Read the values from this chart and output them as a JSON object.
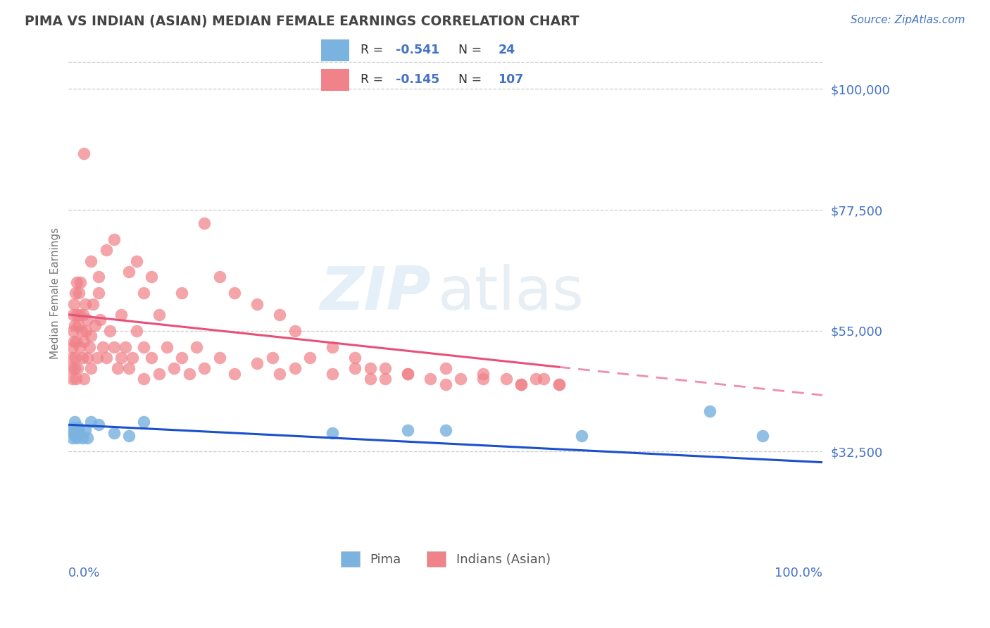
{
  "title": "PIMA VS INDIAN (ASIAN) MEDIAN FEMALE EARNINGS CORRELATION CHART",
  "source": "Source: ZipAtlas.com",
  "ylabel": "Median Female Earnings",
  "yticks": [
    32500,
    55000,
    77500,
    100000
  ],
  "ytick_labels": [
    "$32,500",
    "$55,000",
    "$77,500",
    "$100,000"
  ],
  "xmin": 0.0,
  "xmax": 100.0,
  "ymin": 17000,
  "ymax": 107000,
  "pima_color": "#7ab3e0",
  "indian_color": "#f0828a",
  "pima_R": -0.541,
  "pima_N": 24,
  "indian_R": -0.145,
  "indian_N": 107,
  "legend_label_pima": "Pima",
  "legend_label_indian": "Indians (Asian)",
  "watermark_zip": "ZIP",
  "watermark_atlas": "atlas",
  "blue_text_color": "#4472c4",
  "title_color": "#444444",
  "source_color": "#4472c4",
  "background_color": "#ffffff",
  "grid_color": "#cccccc",
  "regression_pink": "#e8507a",
  "regression_blue": "#1a50cc",
  "pima_line_x0": 0,
  "pima_line_y0": 37500,
  "pima_line_x1": 100,
  "pima_line_y1": 30500,
  "indian_line_x0": 0,
  "indian_line_y0": 58000,
  "indian_line_x1": 100,
  "indian_line_y1": 43000,
  "indian_solid_end_x": 65,
  "pima_x": [
    0.4,
    0.5,
    0.6,
    0.7,
    0.8,
    0.9,
    1.0,
    1.1,
    1.3,
    1.5,
    1.8,
    2.2,
    2.5,
    3.0,
    4.0,
    6.0,
    8.0,
    10.0,
    35.0,
    45.0,
    50.0,
    68.0,
    85.0,
    92.0
  ],
  "pima_y": [
    36500,
    35000,
    37000,
    36000,
    38000,
    35500,
    36500,
    35000,
    37000,
    36000,
    35000,
    36500,
    35000,
    38000,
    37500,
    36000,
    35500,
    38000,
    36000,
    36500,
    36500,
    35500,
    40000,
    35500
  ],
  "indian_x": [
    0.3,
    0.4,
    0.5,
    0.5,
    0.6,
    0.6,
    0.7,
    0.7,
    0.8,
    0.8,
    0.9,
    0.9,
    1.0,
    1.0,
    1.1,
    1.1,
    1.2,
    1.3,
    1.4,
    1.5,
    1.5,
    1.6,
    1.7,
    1.8,
    1.9,
    2.0,
    2.0,
    2.2,
    2.3,
    2.5,
    2.5,
    2.8,
    3.0,
    3.0,
    3.2,
    3.5,
    3.8,
    4.0,
    4.2,
    4.5,
    5.0,
    5.5,
    6.0,
    6.5,
    7.0,
    7.0,
    7.5,
    8.0,
    8.5,
    9.0,
    10.0,
    10.0,
    11.0,
    12.0,
    13.0,
    14.0,
    15.0,
    16.0,
    17.0,
    18.0,
    20.0,
    22.0,
    25.0,
    27.0,
    28.0,
    30.0,
    32.0,
    35.0,
    38.0,
    40.0,
    42.0,
    45.0,
    48.0,
    50.0,
    52.0,
    55.0,
    58.0,
    60.0,
    62.0,
    65.0,
    3.0,
    4.0,
    5.0,
    6.0,
    8.0,
    9.0,
    10.0,
    11.0,
    12.0,
    15.0,
    18.0,
    20.0,
    22.0,
    25.0,
    28.0,
    30.0,
    35.0,
    38.0,
    40.0,
    42.0,
    45.0,
    50.0,
    55.0,
    60.0,
    63.0,
    65.0,
    2.0
  ],
  "indian_y": [
    48000,
    50000,
    46000,
    52000,
    55000,
    58000,
    53000,
    60000,
    48000,
    56000,
    50000,
    62000,
    46000,
    53000,
    58000,
    64000,
    48000,
    56000,
    62000,
    52000,
    58000,
    64000,
    55000,
    50000,
    58000,
    46000,
    53000,
    60000,
    55000,
    50000,
    57000,
    52000,
    48000,
    54000,
    60000,
    56000,
    50000,
    62000,
    57000,
    52000,
    50000,
    55000,
    52000,
    48000,
    50000,
    58000,
    52000,
    48000,
    50000,
    55000,
    52000,
    46000,
    50000,
    47000,
    52000,
    48000,
    50000,
    47000,
    52000,
    48000,
    50000,
    47000,
    49000,
    50000,
    47000,
    48000,
    50000,
    47000,
    48000,
    46000,
    48000,
    47000,
    46000,
    48000,
    46000,
    47000,
    46000,
    45000,
    46000,
    45000,
    68000,
    65000,
    70000,
    72000,
    66000,
    68000,
    62000,
    65000,
    58000,
    62000,
    75000,
    65000,
    62000,
    60000,
    58000,
    55000,
    52000,
    50000,
    48000,
    46000,
    47000,
    45000,
    46000,
    45000,
    46000,
    45000,
    88000
  ]
}
